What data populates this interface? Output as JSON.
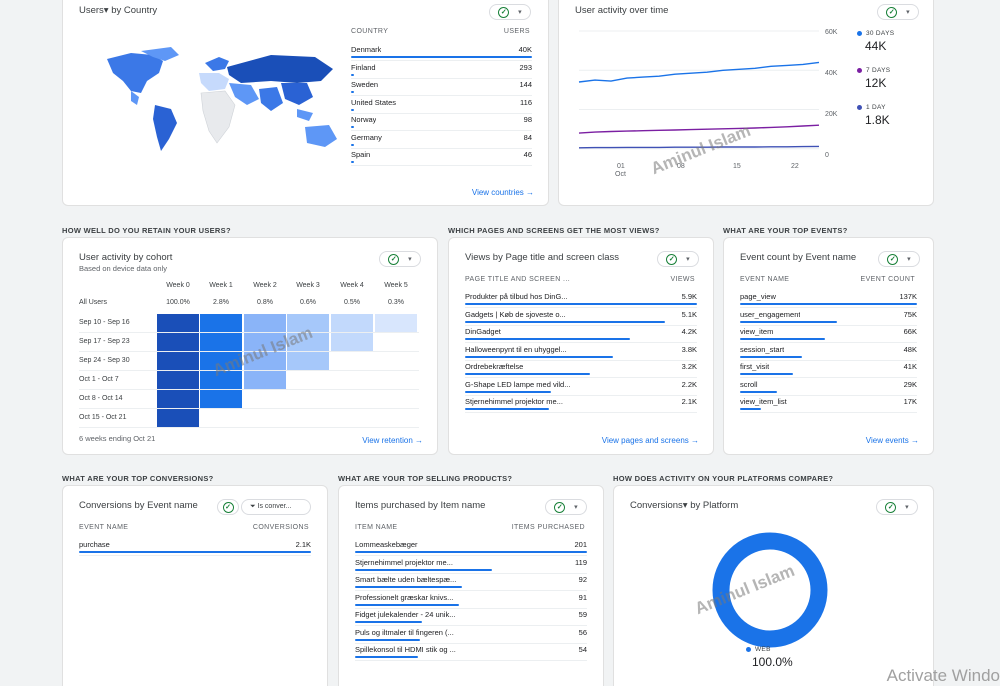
{
  "check_icon": "✓",
  "caret_icon": "▾",
  "country_card": {
    "title": "Users▾ by Country",
    "col_country": "COUNTRY",
    "col_users": "USERS",
    "rows": [
      {
        "label": "Denmark",
        "value": "40K",
        "bar": 1.0
      },
      {
        "label": "Finland",
        "value": "293",
        "bar": 0.0
      },
      {
        "label": "Sweden",
        "value": "144",
        "bar": 0.0
      },
      {
        "label": "United States",
        "value": "116",
        "bar": 0.0
      },
      {
        "label": "Norway",
        "value": "98",
        "bar": 0.0
      },
      {
        "label": "Germany",
        "value": "84",
        "bar": 0.0
      },
      {
        "label": "Spain",
        "value": "46",
        "bar": 0.0
      }
    ],
    "link": "View countries →"
  },
  "activity_card": {
    "title": "User activity over time",
    "y_ticks": [
      "60K",
      "40K",
      "20K",
      "0"
    ],
    "x_ticks": [
      "01",
      "Oct",
      "08",
      "15",
      "22"
    ],
    "legend": [
      {
        "label": "30 DAYS",
        "value": "44K",
        "color": "#1a73e8"
      },
      {
        "label": "7 DAYS",
        "value": "12K",
        "color": "#7b1fa2"
      },
      {
        "label": "1 DAY",
        "value": "1.8K",
        "color": "#3f51b5"
      }
    ]
  },
  "sections": {
    "retain": "HOW WELL DO YOU RETAIN YOUR USERS?",
    "pages": "WHICH PAGES AND SCREENS GET THE MOST VIEWS?",
    "events": "WHAT ARE YOUR TOP EVENTS?",
    "conversions": "WHAT ARE YOUR TOP CONVERSIONS?",
    "products": "WHAT ARE YOUR TOP SELLING PRODUCTS?",
    "platforms": "HOW DOES ACTIVITY ON YOUR PLATFORMS COMPARE?"
  },
  "cohort_card": {
    "title": "User activity by cohort",
    "subtitle": "Based on device data only",
    "weeks": [
      "Week 0",
      "Week 1",
      "Week 2",
      "Week 3",
      "Week 4",
      "Week 5"
    ],
    "all_users_label": "All Users",
    "all_users_values": [
      "100.0%",
      "2.8%",
      "0.8%",
      "0.6%",
      "0.5%",
      "0.3%"
    ],
    "rows": [
      "Sep 10 - Sep 16",
      "Sep 17 - Sep 23",
      "Sep 24 - Sep 30",
      "Oct 1 - Oct 7",
      "Oct 8 - Oct 14",
      "Oct 15 - Oct 21"
    ],
    "footer": "6 weeks ending Oct 21",
    "link": "View retention →"
  },
  "pages_card": {
    "title": "Views by Page title and screen class",
    "col_a": "PAGE TITLE AND SCREEN ...",
    "col_b": "VIEWS",
    "rows": [
      {
        "label": "Produkter på tilbud hos DinG...",
        "value": "5.9K",
        "bar": 1.0
      },
      {
        "label": "Gadgets | Køb de sjoveste o...",
        "value": "5.1K",
        "bar": 0.86
      },
      {
        "label": "DinGadget",
        "value": "4.2K",
        "bar": 0.71
      },
      {
        "label": "Halloweenpynt til en uhyggel...",
        "value": "3.8K",
        "bar": 0.64
      },
      {
        "label": "Ordrebekræftelse",
        "value": "3.2K",
        "bar": 0.54
      },
      {
        "label": "G-Shape LED lampe med vild...",
        "value": "2.2K",
        "bar": 0.37
      },
      {
        "label": "Stjernehimmel projektor me...",
        "value": "2.1K",
        "bar": 0.36
      }
    ],
    "link": "View pages and screens →"
  },
  "events_card": {
    "title": "Event count by Event name",
    "col_a": "EVENT NAME",
    "col_b": "EVENT COUNT",
    "rows": [
      {
        "label": "page_view",
        "value": "137K",
        "bar": 1.0
      },
      {
        "label": "user_engagement",
        "value": "75K",
        "bar": 0.55
      },
      {
        "label": "view_item",
        "value": "66K",
        "bar": 0.48
      },
      {
        "label": "session_start",
        "value": "48K",
        "bar": 0.35
      },
      {
        "label": "first_visit",
        "value": "41K",
        "bar": 0.3
      },
      {
        "label": "scroll",
        "value": "29K",
        "bar": 0.21
      },
      {
        "label": "view_item_list",
        "value": "17K",
        "bar": 0.12
      }
    ],
    "link": "View events →"
  },
  "conv_card": {
    "title": "Conversions by Event name",
    "filter": "Is conver...",
    "col_a": "EVENT NAME",
    "col_b": "CONVERSIONS",
    "rows": [
      {
        "label": "purchase",
        "value": "2.1K",
        "bar": 1.0
      }
    ]
  },
  "products_card": {
    "title": "Items purchased by Item name",
    "col_a": "ITEM NAME",
    "col_b": "ITEMS PURCHASED",
    "rows": [
      {
        "label": "Lommeaskebæger",
        "value": "201",
        "bar": 1.0
      },
      {
        "label": "Stjernehimmel projektor me...",
        "value": "119",
        "bar": 0.59
      },
      {
        "label": "Smart bælte uden bæltespæ...",
        "value": "92",
        "bar": 0.46
      },
      {
        "label": "Professionelt græskar knivs...",
        "value": "91",
        "bar": 0.45
      },
      {
        "label": "Fidget julekalender - 24 unik...",
        "value": "59",
        "bar": 0.29
      },
      {
        "label": "Puls og iltmaler til fingeren (...",
        "value": "56",
        "bar": 0.28
      },
      {
        "label": "Spillekonsol til HDMI stik og ...",
        "value": "54",
        "bar": 0.27
      }
    ]
  },
  "platform_card": {
    "title": "Conversions▾ by Platform",
    "legend_label": "WEB",
    "legend_value": "100.0%",
    "color": "#1a73e8"
  },
  "watermark": "Aminul Islam",
  "activate": "Activate Windo"
}
